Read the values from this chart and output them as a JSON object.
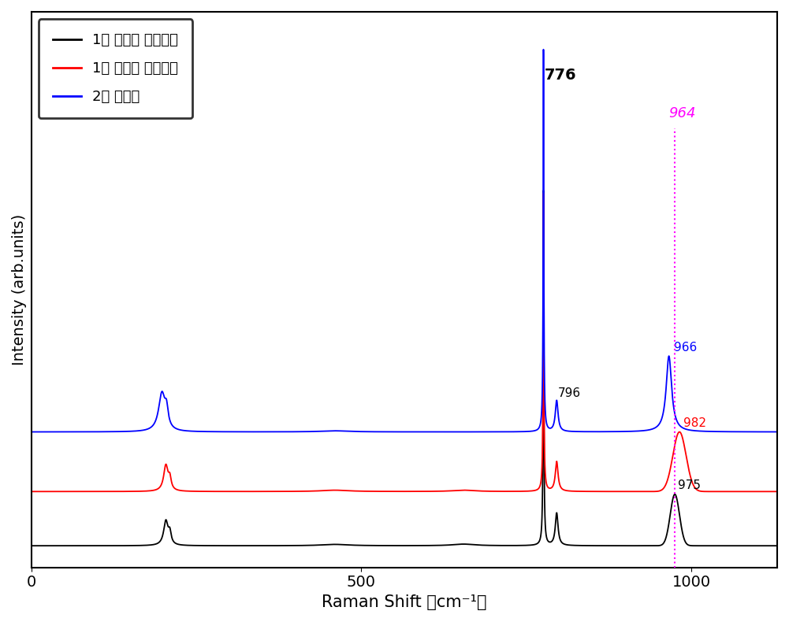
{
  "title": "",
  "xlabel": "Raman Shift （cm⁻¹）",
  "ylabel": "Intensity (arb.units)",
  "xlim": [
    0,
    1130
  ],
  "xticks": [
    0,
    500,
    1000
  ],
  "xticklabels": [
    "0",
    "500",
    "1000"
  ],
  "background_color": "#ffffff",
  "legend_labels": [
    "1번 웨이퍼 중앙부분",
    "1번 웨이퍼 가장자리",
    "2번 웨이퍼"
  ],
  "legend_colors": [
    "#000000",
    "#ff0000",
    "#0000ff"
  ],
  "vline_color": "#ff00ff",
  "black_baseline": 0.08,
  "red_baseline": 0.28,
  "blue_baseline": 0.5
}
